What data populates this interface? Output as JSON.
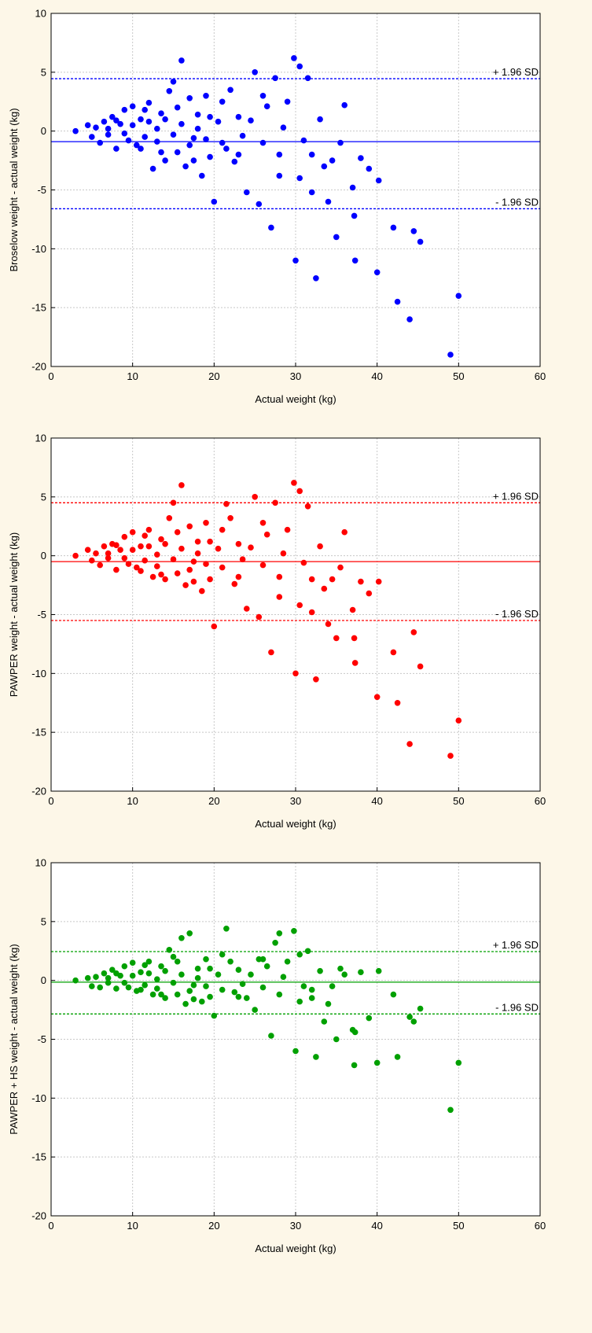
{
  "chart_data": [
    {
      "type": "scatter",
      "ylabel": "Broselow weight - actual weight (kg)",
      "xlabel": "Actual weight (kg)",
      "xlim": [
        0,
        60
      ],
      "ylim": [
        -20,
        10
      ],
      "xticks": [
        "0",
        "10",
        "20",
        "30",
        "40",
        "50",
        "60"
      ],
      "yticks": [
        "-20",
        "-15",
        "-10",
        "-5",
        "0",
        "5",
        "10"
      ],
      "grid": true,
      "color": "#0000ff",
      "mean_line": -0.9,
      "upper_loa": {
        "value": 4.45,
        "label": "+ 1.96 SD"
      },
      "lower_loa": {
        "value": -6.6,
        "label": "- 1.96 SD"
      },
      "points": [
        [
          3,
          0
        ],
        [
          4.5,
          0.5
        ],
        [
          5,
          -0.5
        ],
        [
          5.5,
          0.3
        ],
        [
          6,
          -1
        ],
        [
          6.5,
          0.8
        ],
        [
          7,
          -0.3
        ],
        [
          7.5,
          1.2
        ],
        [
          8,
          -1.5
        ],
        [
          8.5,
          0.6
        ],
        [
          9,
          1.8
        ],
        [
          9.5,
          -0.8
        ],
        [
          10,
          2.1
        ],
        [
          10.5,
          -1.2
        ],
        [
          11,
          1
        ],
        [
          11.5,
          -0.5
        ],
        [
          12,
          2.4
        ],
        [
          12.5,
          -3.2
        ],
        [
          13,
          0.2
        ],
        [
          13.5,
          1.5
        ],
        [
          14,
          -2.5
        ],
        [
          14.5,
          3.4
        ],
        [
          15,
          4.2
        ],
        [
          15.5,
          -1.8
        ],
        [
          16,
          6
        ],
        [
          16.5,
          -3
        ],
        [
          17,
          2.8
        ],
        [
          17.5,
          -0.6
        ],
        [
          18,
          1.4
        ],
        [
          18.5,
          -3.8
        ],
        [
          19,
          3
        ],
        [
          19.5,
          -2.2
        ],
        [
          20,
          -6
        ],
        [
          20.5,
          0.8
        ],
        [
          21,
          2.5
        ],
        [
          21.5,
          -1.5
        ],
        [
          22,
          3.5
        ],
        [
          22.5,
          -2.6
        ],
        [
          23,
          1.2
        ],
        [
          23.5,
          -0.4
        ],
        [
          24,
          -5.2
        ],
        [
          24.5,
          0.9
        ],
        [
          25,
          5
        ],
        [
          25.5,
          -6.2
        ],
        [
          26,
          -1
        ],
        [
          26.5,
          2.1
        ],
        [
          27,
          -8.2
        ],
        [
          27.5,
          4.5
        ],
        [
          28,
          -3.8
        ],
        [
          28.5,
          0.3
        ],
        [
          29,
          2.5
        ],
        [
          29.8,
          6.2
        ],
        [
          30,
          -11
        ],
        [
          30.5,
          5.5
        ],
        [
          31,
          -0.8
        ],
        [
          31.5,
          4.5
        ],
        [
          32,
          -5.2
        ],
        [
          32.5,
          -12.5
        ],
        [
          33,
          1
        ],
        [
          33.5,
          -3
        ],
        [
          34,
          -6
        ],
        [
          34.5,
          -2.5
        ],
        [
          35,
          -9
        ],
        [
          35.5,
          -1
        ],
        [
          36,
          2.2
        ],
        [
          37,
          -4.8
        ],
        [
          37.2,
          -7.2
        ],
        [
          37.3,
          -11
        ],
        [
          38,
          -2.3
        ],
        [
          39,
          -3.2
        ],
        [
          40,
          -12
        ],
        [
          40.2,
          -4.2
        ],
        [
          42,
          -8.2
        ],
        [
          42.5,
          -14.5
        ],
        [
          44,
          -16
        ],
        [
          44.5,
          -8.5
        ],
        [
          45.3,
          -9.4
        ],
        [
          49,
          -19
        ],
        [
          50,
          -14
        ],
        [
          7,
          0.2
        ],
        [
          8,
          0.9
        ],
        [
          9,
          -0.2
        ],
        [
          10,
          0.5
        ],
        [
          11,
          -1.5
        ],
        [
          12,
          0.8
        ],
        [
          13,
          -0.9
        ],
        [
          14,
          1
        ],
        [
          15,
          -0.3
        ],
        [
          16,
          0.6
        ],
        [
          17,
          -1.2
        ],
        [
          18,
          0.2
        ],
        [
          19,
          -0.7
        ],
        [
          11.5,
          1.8
        ],
        [
          13.5,
          -1.8
        ],
        [
          15.5,
          2
        ],
        [
          17.5,
          -2.5
        ],
        [
          19.5,
          1.2
        ],
        [
          21,
          -1
        ],
        [
          23,
          -2
        ],
        [
          26,
          3
        ],
        [
          28,
          -2
        ],
        [
          30.5,
          -4
        ],
        [
          32,
          -2
        ]
      ]
    },
    {
      "type": "scatter",
      "ylabel": "PAWPER weight - actual weight (kg)",
      "xlabel": "Actual weight (kg)",
      "xlim": [
        0,
        60
      ],
      "ylim": [
        -20,
        10
      ],
      "xticks": [
        "0",
        "10",
        "20",
        "30",
        "40",
        "50",
        "60"
      ],
      "yticks": [
        "-20",
        "-15",
        "-10",
        "-5",
        "0",
        "5",
        "10"
      ],
      "grid": true,
      "color": "#ff0000",
      "mean_line": -0.5,
      "upper_loa": {
        "value": 4.5,
        "label": "+ 1.96 SD"
      },
      "lower_loa": {
        "value": -5.5,
        "label": "- 1.96 SD"
      },
      "points": [
        [
          3,
          0
        ],
        [
          4.5,
          0.5
        ],
        [
          5,
          -0.4
        ],
        [
          5.5,
          0.2
        ],
        [
          6,
          -0.8
        ],
        [
          6.5,
          0.8
        ],
        [
          7,
          -0.2
        ],
        [
          7.5,
          1
        ],
        [
          8,
          -1.2
        ],
        [
          8.5,
          0.5
        ],
        [
          9,
          1.6
        ],
        [
          9.5,
          -0.7
        ],
        [
          10,
          2
        ],
        [
          10.5,
          -1
        ],
        [
          11,
          0.8
        ],
        [
          11.5,
          -0.4
        ],
        [
          12,
          2.2
        ],
        [
          12.5,
          -1.8
        ],
        [
          13,
          0.1
        ],
        [
          13.5,
          1.4
        ],
        [
          14,
          -2
        ],
        [
          14.5,
          3.2
        ],
        [
          15,
          4.5
        ],
        [
          15.5,
          -1.5
        ],
        [
          16,
          6
        ],
        [
          16.5,
          -2.5
        ],
        [
          17,
          2.5
        ],
        [
          17.5,
          -0.5
        ],
        [
          18,
          1.2
        ],
        [
          18.5,
          -3
        ],
        [
          19,
          2.8
        ],
        [
          19.5,
          -2
        ],
        [
          20,
          -6
        ],
        [
          20.5,
          0.6
        ],
        [
          21,
          2.2
        ],
        [
          21.5,
          4.4
        ],
        [
          22,
          3.2
        ],
        [
          22.5,
          -2.4
        ],
        [
          23,
          1
        ],
        [
          23.5,
          -0.3
        ],
        [
          24,
          -4.5
        ],
        [
          24.5,
          0.7
        ],
        [
          25,
          5
        ],
        [
          25.5,
          -5.2
        ],
        [
          26,
          -0.8
        ],
        [
          26.5,
          1.8
        ],
        [
          27,
          -8.2
        ],
        [
          27.5,
          4.5
        ],
        [
          28,
          -3.5
        ],
        [
          28.5,
          0.2
        ],
        [
          29,
          2.2
        ],
        [
          29.8,
          6.2
        ],
        [
          30,
          -10
        ],
        [
          30.5,
          5.5
        ],
        [
          31,
          -0.6
        ],
        [
          31.5,
          4.2
        ],
        [
          32,
          -4.8
        ],
        [
          32.5,
          -10.5
        ],
        [
          33,
          0.8
        ],
        [
          33.5,
          -2.8
        ],
        [
          34,
          -5.8
        ],
        [
          34.5,
          -2
        ],
        [
          35,
          -7
        ],
        [
          35.5,
          -1
        ],
        [
          36,
          2
        ],
        [
          37,
          -4.6
        ],
        [
          37.2,
          -7
        ],
        [
          37.3,
          -9.1
        ],
        [
          38,
          -2.2
        ],
        [
          39,
          -3.2
        ],
        [
          40,
          -12
        ],
        [
          40.2,
          -2.2
        ],
        [
          42,
          -8.2
        ],
        [
          42.5,
          -12.5
        ],
        [
          44,
          -16
        ],
        [
          44.5,
          -6.5
        ],
        [
          45.3,
          -9.4
        ],
        [
          49,
          -17
        ],
        [
          50,
          -14
        ],
        [
          7,
          0.2
        ],
        [
          8,
          0.9
        ],
        [
          9,
          -0.2
        ],
        [
          10,
          0.5
        ],
        [
          11,
          -1.3
        ],
        [
          12,
          0.8
        ],
        [
          13,
          -0.9
        ],
        [
          14,
          1
        ],
        [
          15,
          -0.3
        ],
        [
          16,
          0.6
        ],
        [
          17,
          -1.2
        ],
        [
          18,
          0.2
        ],
        [
          19,
          -0.7
        ],
        [
          11.5,
          1.7
        ],
        [
          13.5,
          -1.6
        ],
        [
          15.5,
          2
        ],
        [
          17.5,
          -2.2
        ],
        [
          19.5,
          1.2
        ],
        [
          21,
          -1
        ],
        [
          23,
          -1.8
        ],
        [
          26,
          2.8
        ],
        [
          28,
          -1.8
        ],
        [
          30.5,
          -4.2
        ],
        [
          32,
          -2
        ]
      ]
    },
    {
      "type": "scatter",
      "ylabel": "PAWPER + HS weight - actual weight (kg)",
      "xlabel": "Actual weight (kg)",
      "xlim": [
        0,
        60
      ],
      "ylim": [
        -20,
        10
      ],
      "xticks": [
        "0",
        "10",
        "20",
        "30",
        "40",
        "50",
        "60"
      ],
      "yticks": [
        "-20",
        "-15",
        "-10",
        "-5",
        "0",
        "5",
        "10"
      ],
      "grid": true,
      "color": "#00a000",
      "mean_line": -0.15,
      "upper_loa": {
        "value": 2.45,
        "label": "+ 1.96 SD"
      },
      "lower_loa": {
        "value": -2.85,
        "label": "- 1.96 SD"
      },
      "points": [
        [
          3,
          0
        ],
        [
          4.5,
          0.2
        ],
        [
          5,
          -0.5
        ],
        [
          5.5,
          0.3
        ],
        [
          6,
          -0.6
        ],
        [
          6.5,
          0.6
        ],
        [
          7,
          -0.2
        ],
        [
          7.5,
          0.9
        ],
        [
          8,
          -0.7
        ],
        [
          8.5,
          0.4
        ],
        [
          9,
          1.2
        ],
        [
          9.5,
          -0.6
        ],
        [
          10,
          1.5
        ],
        [
          10.5,
          -0.9
        ],
        [
          11,
          0.7
        ],
        [
          11.5,
          -0.4
        ],
        [
          12,
          1.6
        ],
        [
          12.5,
          -1.2
        ],
        [
          13,
          0.1
        ],
        [
          13.5,
          1.2
        ],
        [
          14,
          -1.5
        ],
        [
          14.5,
          2.6
        ],
        [
          15,
          2
        ],
        [
          15.5,
          -1.2
        ],
        [
          16,
          3.6
        ],
        [
          16.5,
          -2
        ],
        [
          17,
          4
        ],
        [
          17.5,
          -0.4
        ],
        [
          18,
          1
        ],
        [
          18.5,
          -1.8
        ],
        [
          19,
          1.8
        ],
        [
          19.5,
          -1.4
        ],
        [
          20,
          -3
        ],
        [
          20.5,
          0.5
        ],
        [
          21,
          2.2
        ],
        [
          21.5,
          4.4
        ],
        [
          22,
          1.6
        ],
        [
          22.5,
          -1
        ],
        [
          23,
          0.9
        ],
        [
          23.5,
          -0.3
        ],
        [
          24,
          -1.5
        ],
        [
          24.5,
          0.5
        ],
        [
          25,
          -2.5
        ],
        [
          25.5,
          1.8
        ],
        [
          26,
          -0.6
        ],
        [
          26.5,
          1.2
        ],
        [
          27,
          -4.7
        ],
        [
          27.5,
          3.2
        ],
        [
          28,
          -1.2
        ],
        [
          28.5,
          0.3
        ],
        [
          29,
          1.6
        ],
        [
          29.8,
          4.2
        ],
        [
          30,
          -6
        ],
        [
          30.5,
          2.2
        ],
        [
          31,
          -0.5
        ],
        [
          31.5,
          2.5
        ],
        [
          32,
          -1.5
        ],
        [
          32.5,
          -6.5
        ],
        [
          33,
          0.8
        ],
        [
          33.5,
          -3.5
        ],
        [
          34,
          -2
        ],
        [
          34.5,
          -0.5
        ],
        [
          35,
          -5
        ],
        [
          35.5,
          1
        ],
        [
          36,
          0.5
        ],
        [
          37,
          -4.2
        ],
        [
          37.2,
          -7.2
        ],
        [
          37.3,
          -4.4
        ],
        [
          38,
          0.7
        ],
        [
          39,
          -3.2
        ],
        [
          40,
          -7
        ],
        [
          40.2,
          0.8
        ],
        [
          42,
          -1.2
        ],
        [
          42.5,
          -6.5
        ],
        [
          44,
          -3.1
        ],
        [
          44.5,
          -3.5
        ],
        [
          45.3,
          -2.4
        ],
        [
          49,
          -11
        ],
        [
          50,
          -7
        ],
        [
          7,
          0.2
        ],
        [
          8,
          0.6
        ],
        [
          9,
          -0.2
        ],
        [
          10,
          0.4
        ],
        [
          11,
          -0.8
        ],
        [
          12,
          0.6
        ],
        [
          13,
          -0.7
        ],
        [
          14,
          0.8
        ],
        [
          15,
          -0.2
        ],
        [
          16,
          0.5
        ],
        [
          17,
          -0.9
        ],
        [
          18,
          0.2
        ],
        [
          19,
          -0.5
        ],
        [
          11.5,
          1.3
        ],
        [
          13.5,
          -1.2
        ],
        [
          15.5,
          1.6
        ],
        [
          17.5,
          -1.6
        ],
        [
          19.5,
          1
        ],
        [
          21,
          -0.8
        ],
        [
          23,
          -1.4
        ],
        [
          26,
          1.8
        ],
        [
          28,
          4
        ],
        [
          30.5,
          -1.8
        ],
        [
          32,
          -0.8
        ]
      ]
    }
  ]
}
